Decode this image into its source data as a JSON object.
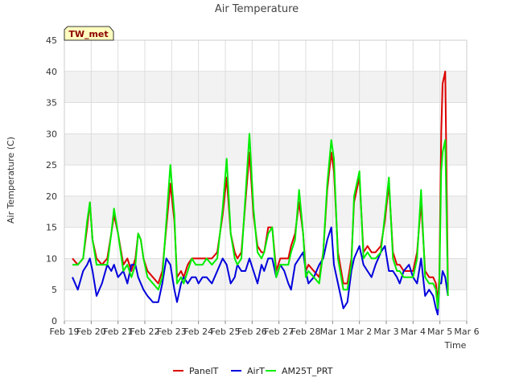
{
  "chart_data": {
    "type": "line",
    "title": "Air Temperature",
    "xlabel": "Time",
    "ylabel": "Air Temperature (C)",
    "site_label": "TW_met",
    "ylim": [
      0,
      45
    ],
    "yticks": [
      0,
      5,
      10,
      15,
      20,
      25,
      30,
      35,
      40,
      45
    ],
    "xlim": [
      0,
      15
    ],
    "xtick_labels": [
      "Feb 19",
      "Feb 20",
      "Feb 21",
      "Feb 22",
      "Feb 23",
      "Feb 24",
      "Feb 25",
      "Feb 26",
      "Feb 27",
      "Feb 28",
      "Mar 1",
      "Mar 2",
      "Mar 3",
      "Mar 4",
      "Mar 5",
      "Mar 6"
    ],
    "x_unit": "days since Feb 19 00:00",
    "grid": true,
    "legend_position": "bottom",
    "series": [
      {
        "name": "PanelT",
        "color": "#dd0000",
        "x": [
          0.3,
          0.5,
          0.7,
          0.85,
          0.95,
          1.05,
          1.2,
          1.4,
          1.6,
          1.75,
          1.85,
          2.0,
          2.2,
          2.35,
          2.5,
          2.65,
          2.75,
          2.85,
          2.95,
          3.1,
          3.3,
          3.5,
          3.65,
          3.8,
          3.95,
          4.1,
          4.2,
          4.35,
          4.45,
          4.6,
          4.75,
          4.9,
          5.0,
          5.15,
          5.3,
          5.5,
          5.7,
          5.9,
          6.05,
          6.2,
          6.35,
          6.45,
          6.6,
          6.75,
          6.9,
          7.05,
          7.2,
          7.35,
          7.45,
          7.6,
          7.75,
          7.9,
          8.05,
          8.2,
          8.35,
          8.45,
          8.6,
          8.75,
          8.9,
          9.0,
          9.1,
          9.3,
          9.5,
          9.65,
          9.8,
          9.95,
          10.05,
          10.2,
          10.4,
          10.55,
          10.7,
          10.8,
          11.0,
          11.15,
          11.3,
          11.45,
          11.6,
          11.8,
          11.95,
          12.1,
          12.25,
          12.4,
          12.5,
          12.65,
          12.85,
          13.0,
          13.15,
          13.3,
          13.45,
          13.6,
          13.75,
          13.85,
          13.92,
          13.98,
          14.05,
          14.1,
          14.2,
          14.3
        ],
        "y": [
          10,
          9,
          10,
          15,
          19,
          13,
          10,
          9,
          10,
          14,
          17,
          14,
          9,
          10,
          8,
          10,
          14,
          13,
          10,
          8,
          7,
          6,
          8,
          15,
          22,
          16,
          7,
          8,
          7,
          9,
          10,
          10,
          10,
          10,
          10,
          10,
          11,
          17,
          23,
          14,
          11,
          10,
          11,
          19,
          27,
          17,
          12,
          11,
          11,
          15,
          15,
          8,
          10,
          10,
          10,
          12,
          14,
          19,
          14,
          8,
          9,
          8,
          7,
          11,
          21,
          27,
          24,
          11,
          6,
          6,
          10,
          19,
          23,
          11,
          12,
          11,
          11,
          12,
          16,
          22,
          11,
          9,
          9,
          8,
          8,
          8,
          11,
          19,
          8,
          7,
          7,
          6,
          3,
          7,
          30,
          38,
          40,
          5
        ],
        "values": [
          10,
          9,
          10,
          15,
          19,
          13,
          10,
          9,
          10,
          14,
          17,
          14,
          9,
          10,
          8,
          10,
          14,
          13,
          10,
          8,
          7,
          6,
          8,
          15,
          22,
          16,
          7,
          8,
          7,
          9,
          10,
          10,
          10,
          10,
          10,
          10,
          11,
          17,
          23,
          14,
          11,
          10,
          11,
          19,
          27,
          17,
          12,
          11,
          11,
          15,
          15,
          8,
          10,
          10,
          10,
          12,
          14,
          19,
          14,
          8,
          9,
          8,
          7,
          11,
          21,
          27,
          24,
          11,
          6,
          6,
          10,
          19,
          23,
          11,
          12,
          11,
          11,
          12,
          16,
          22,
          11,
          9,
          9,
          8,
          8,
          8,
          11,
          19,
          8,
          7,
          7,
          6,
          3,
          7,
          30,
          38,
          40,
          5
        ]
      },
      {
        "name": "AirT",
        "color": "#0000dd",
        "x": [
          0.3,
          0.5,
          0.7,
          0.85,
          0.95,
          1.05,
          1.2,
          1.4,
          1.6,
          1.75,
          1.85,
          2.0,
          2.2,
          2.35,
          2.5,
          2.65,
          2.75,
          2.85,
          2.95,
          3.1,
          3.3,
          3.5,
          3.65,
          3.8,
          3.95,
          4.1,
          4.2,
          4.35,
          4.45,
          4.6,
          4.75,
          4.9,
          5.0,
          5.15,
          5.3,
          5.5,
          5.7,
          5.9,
          6.05,
          6.2,
          6.35,
          6.45,
          6.6,
          6.75,
          6.9,
          7.05,
          7.2,
          7.35,
          7.45,
          7.6,
          7.75,
          7.9,
          8.05,
          8.2,
          8.35,
          8.45,
          8.6,
          8.75,
          8.9,
          9.0,
          9.1,
          9.3,
          9.5,
          9.65,
          9.8,
          9.95,
          10.05,
          10.2,
          10.4,
          10.55,
          10.7,
          10.8,
          11.0,
          11.15,
          11.3,
          11.45,
          11.6,
          11.8,
          11.95,
          12.1,
          12.25,
          12.4,
          12.5,
          12.65,
          12.85,
          13.0,
          13.15,
          13.3,
          13.45,
          13.6,
          13.75,
          13.85,
          13.92,
          13.98,
          14.05,
          14.1,
          14.2,
          14.3
        ],
        "y": [
          7,
          5,
          8,
          9,
          10,
          8,
          4,
          6,
          9,
          8,
          9,
          7,
          8,
          6,
          9,
          9,
          7,
          6,
          5,
          4,
          3,
          3,
          6,
          10,
          9,
          5,
          3,
          6,
          7,
          6,
          7,
          7,
          6,
          7,
          7,
          6,
          8,
          10,
          9,
          6,
          7,
          9,
          8,
          8,
          10,
          8,
          6,
          9,
          8,
          10,
          10,
          7,
          9,
          8,
          6,
          5,
          9,
          10,
          11,
          8,
          6,
          7,
          9,
          10,
          13,
          15,
          9,
          6,
          2,
          3,
          8,
          10,
          12,
          9,
          8,
          7,
          9,
          11,
          12,
          8,
          8,
          7,
          6,
          8,
          9,
          7,
          6,
          10,
          4,
          5,
          4,
          2,
          1,
          6,
          6,
          8,
          7,
          4
        ],
        "values": [
          7,
          5,
          8,
          9,
          10,
          8,
          4,
          6,
          9,
          8,
          9,
          7,
          8,
          6,
          9,
          9,
          7,
          6,
          5,
          4,
          3,
          3,
          6,
          10,
          9,
          5,
          3,
          6,
          7,
          6,
          7,
          7,
          6,
          7,
          7,
          6,
          8,
          10,
          9,
          6,
          7,
          9,
          8,
          8,
          10,
          8,
          6,
          9,
          8,
          10,
          10,
          7,
          9,
          8,
          6,
          5,
          9,
          10,
          11,
          8,
          6,
          7,
          9,
          10,
          13,
          15,
          9,
          6,
          2,
          3,
          8,
          10,
          12,
          9,
          8,
          7,
          9,
          11,
          12,
          8,
          8,
          7,
          6,
          8,
          9,
          7,
          6,
          10,
          4,
          5,
          4,
          2,
          1,
          6,
          6,
          8,
          7,
          4
        ]
      },
      {
        "name": "AM25T_PRT",
        "color": "#00ee00",
        "x": [
          0.3,
          0.5,
          0.7,
          0.85,
          0.95,
          1.05,
          1.2,
          1.4,
          1.6,
          1.75,
          1.85,
          2.0,
          2.2,
          2.35,
          2.5,
          2.65,
          2.75,
          2.85,
          2.95,
          3.1,
          3.3,
          3.5,
          3.65,
          3.8,
          3.95,
          4.1,
          4.2,
          4.35,
          4.45,
          4.6,
          4.75,
          4.9,
          5.0,
          5.15,
          5.3,
          5.5,
          5.7,
          5.9,
          6.05,
          6.2,
          6.35,
          6.45,
          6.6,
          6.75,
          6.9,
          7.05,
          7.2,
          7.35,
          7.45,
          7.6,
          7.75,
          7.9,
          8.05,
          8.2,
          8.35,
          8.45,
          8.6,
          8.75,
          8.9,
          9.0,
          9.1,
          9.3,
          9.5,
          9.65,
          9.8,
          9.95,
          10.05,
          10.2,
          10.4,
          10.55,
          10.7,
          10.8,
          11.0,
          11.15,
          11.3,
          11.45,
          11.6,
          11.8,
          11.95,
          12.1,
          12.25,
          12.4,
          12.5,
          12.65,
          12.85,
          13.0,
          13.15,
          13.3,
          13.45,
          13.6,
          13.75,
          13.85,
          13.92,
          13.98,
          14.05,
          14.1,
          14.2,
          14.3
        ],
        "y": [
          9,
          9,
          10,
          16,
          19,
          13,
          9,
          9,
          9,
          14,
          18,
          14,
          8,
          9,
          7,
          9,
          14,
          13,
          10,
          7,
          6,
          5,
          7,
          16,
          25,
          17,
          6,
          7,
          6,
          8,
          10,
          9,
          9,
          9,
          10,
          9,
          10,
          18,
          26,
          14,
          10,
          9,
          10,
          20,
          30,
          18,
          11,
          10,
          11,
          14,
          15,
          7,
          9,
          9,
          9,
          11,
          13,
          21,
          14,
          7,
          8,
          7,
          6,
          11,
          22,
          29,
          26,
          10,
          5,
          5,
          9,
          20,
          24,
          10,
          11,
          10,
          10,
          11,
          17,
          23,
          10,
          8,
          8,
          7,
          7,
          7,
          10,
          21,
          7,
          6,
          6,
          5,
          2,
          6,
          24,
          27,
          29,
          4
        ],
        "values": [
          9,
          9,
          10,
          16,
          19,
          13,
          9,
          9,
          9,
          14,
          18,
          14,
          8,
          9,
          7,
          9,
          14,
          13,
          10,
          7,
          6,
          5,
          7,
          16,
          25,
          17,
          6,
          7,
          6,
          8,
          10,
          9,
          9,
          9,
          10,
          9,
          10,
          18,
          26,
          14,
          10,
          9,
          10,
          20,
          30,
          18,
          11,
          10,
          11,
          14,
          15,
          7,
          9,
          9,
          9,
          11,
          13,
          21,
          14,
          7,
          8,
          7,
          6,
          11,
          22,
          29,
          26,
          10,
          5,
          5,
          9,
          20,
          24,
          10,
          11,
          10,
          10,
          11,
          17,
          23,
          10,
          8,
          8,
          7,
          7,
          7,
          10,
          21,
          7,
          6,
          6,
          5,
          2,
          6,
          24,
          27,
          29,
          4
        ]
      }
    ]
  }
}
